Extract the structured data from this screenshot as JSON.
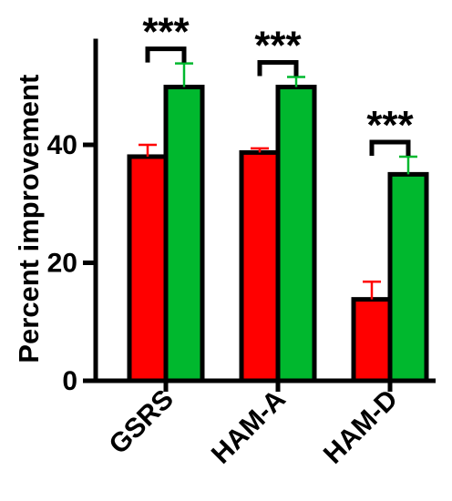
{
  "chart_data": {
    "type": "bar",
    "title": "",
    "xlabel": "",
    "ylabel": "Percent improvement",
    "ylim": [
      0,
      58
    ],
    "y_ticks": [
      0,
      20,
      40
    ],
    "grid": false,
    "categories": [
      "GSRS",
      "HAM-A",
      "HAM-D"
    ],
    "series": [
      {
        "color": "#ff0000",
        "values": [
          38,
          38.7,
          13.8
        ],
        "errors": [
          2,
          0.7,
          3
        ]
      },
      {
        "color": "#00b82e",
        "values": [
          49.8,
          49.8,
          35
        ],
        "errors": [
          4,
          1.7,
          3
        ]
      }
    ],
    "significance": [
      "***",
      "***",
      "***"
    ]
  }
}
